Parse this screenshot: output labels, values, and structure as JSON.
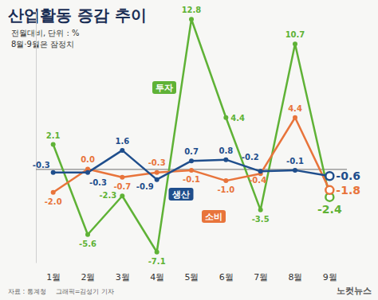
{
  "chart_data": {
    "type": "line",
    "title": "산업활동 증감 추이",
    "subtitle": "전월대비, 단위 : %",
    "note": "8월·9월은 잠정치",
    "categories": [
      "1월",
      "2월",
      "3월",
      "4월",
      "5월",
      "6월",
      "7월",
      "8월",
      "9월"
    ],
    "series": [
      {
        "name": "생산",
        "color": "#1f4e8c",
        "values": [
          -0.3,
          -0.3,
          1.6,
          -0.9,
          0.7,
          0.8,
          -0.2,
          -0.1,
          -0.6
        ],
        "value_labels": [
          "-0.3",
          "-0.3",
          "1.6",
          "-0.9",
          "0.7",
          "0.8",
          "-0.2",
          "-0.1",
          "-0.6"
        ]
      },
      {
        "name": "소비",
        "color": "#e8743b",
        "values": [
          -2.0,
          0.0,
          -0.7,
          -0.3,
          -0.1,
          -1.0,
          -0.4,
          4.4,
          -1.8
        ],
        "value_labels": [
          "-2.0",
          "0.0",
          "-0.7",
          "-0.3",
          "-0.1",
          "-1.0",
          "-0.4",
          "4.4",
          "-1.8"
        ]
      },
      {
        "name": "투자",
        "color": "#5fb236",
        "values": [
          2.1,
          -5.6,
          -2.3,
          -7.1,
          12.8,
          4.4,
          -3.5,
          10.7,
          -2.4
        ],
        "value_labels": [
          "2.1",
          "-5.6",
          "-2.3",
          "-7.1",
          "12.8",
          "4.4",
          "-3.5",
          "10.7",
          "-2.4"
        ]
      }
    ],
    "ylim": [
      -8,
      13.5
    ],
    "yticks": [
      0
    ],
    "tick_labels": "x",
    "data_labels": true,
    "marker": "circle",
    "source": "자료 : 통계청",
    "credit": "그래픽=김성기 기자",
    "logo": "노컷뉴스"
  }
}
